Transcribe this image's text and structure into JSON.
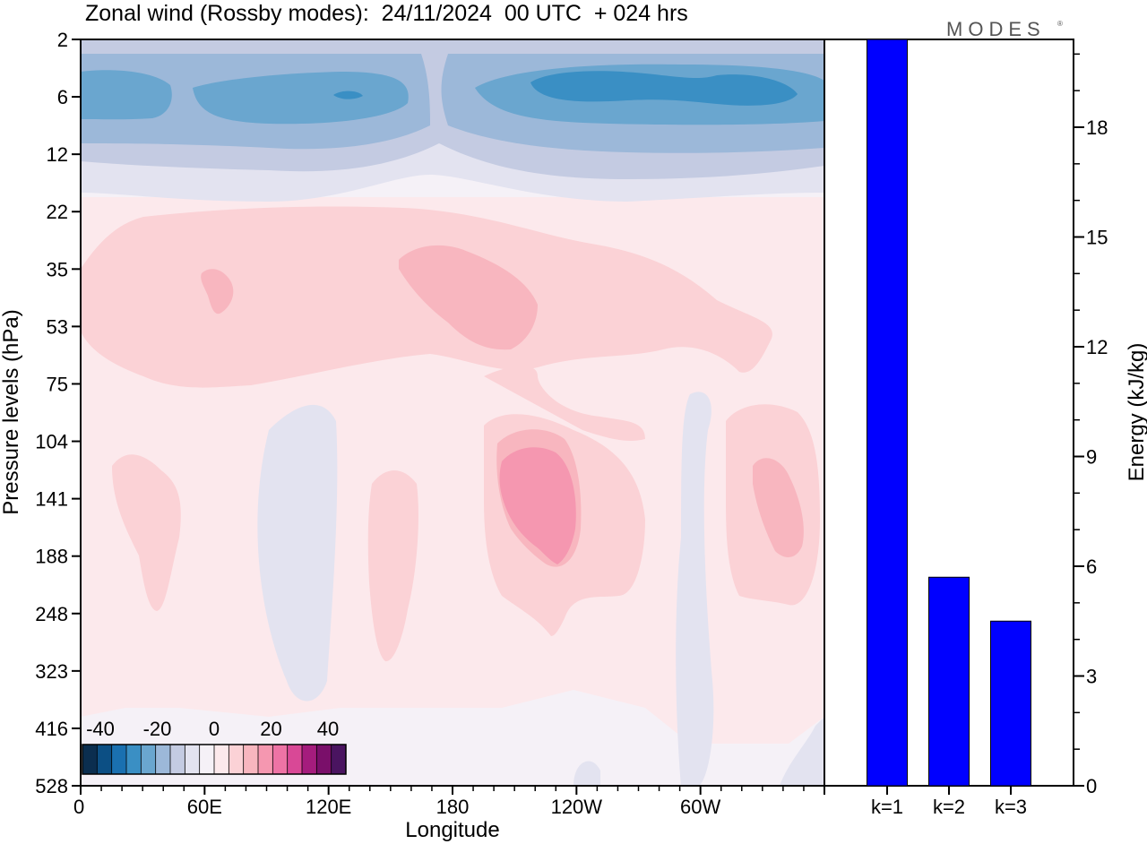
{
  "header": {
    "title": "Zonal wind (Rossby modes):  24/11/2024  00 UTC  + 024 hrs",
    "brand": "MODES",
    "brand_mark": "®"
  },
  "chart_data": [
    {
      "type": "heatmap",
      "xlabel": "Longitude",
      "ylabel": "Pressure levels (hPa)",
      "x_ticks": [
        "0",
        "60E",
        "120E",
        "180",
        "120W",
        "60W"
      ],
      "y_ticks": [
        "2",
        "6",
        "12",
        "22",
        "35",
        "53",
        "75",
        "104",
        "141",
        "188",
        "248",
        "323",
        "416",
        "528"
      ],
      "colorbar": {
        "ticks": [
          "-40",
          "-20",
          "0",
          "20",
          "40"
        ],
        "colors": [
          "#0b2e4f",
          "#0c4f84",
          "#1a70b0",
          "#3a8fc4",
          "#6aa6cf",
          "#9cb8d9",
          "#c4cbe2",
          "#e3e3f0",
          "#f5f1f7",
          "#fce9ec",
          "#fbd2d6",
          "#f8b6bf",
          "#f597b0",
          "#ee73a5",
          "#d94896",
          "#a51c7d",
          "#7a0f6a",
          "#4a1460"
        ]
      },
      "contour_regions": [
        {
          "level": 0,
          "color": "#fce9ec"
        },
        {
          "level": -1,
          "color": "#e3e3f0"
        },
        {
          "level": -2,
          "color": "#c4cbe2"
        },
        {
          "level": -3,
          "color": "#9cb8d9"
        },
        {
          "level": -4,
          "color": "#6aa6cf"
        },
        {
          "level": -5,
          "color": "#3a8fc4"
        },
        {
          "level": -6,
          "color": "#1a70b0"
        },
        {
          "level": 1,
          "color": "#fbd2d6"
        },
        {
          "level": 2,
          "color": "#f8b6bf"
        },
        {
          "level": 3,
          "color": "#f597b0"
        }
      ]
    },
    {
      "type": "bar",
      "categories": [
        "k=1",
        "k=2",
        "k=3"
      ],
      "values": [
        20.5,
        5.7,
        4.5
      ],
      "ylabel": "Energy (kJ/kg)",
      "ylim": [
        0,
        20.4
      ],
      "y_ticks": [
        0,
        3,
        6,
        9,
        12,
        15,
        18
      ],
      "bar_color": "#0000ff"
    }
  ]
}
